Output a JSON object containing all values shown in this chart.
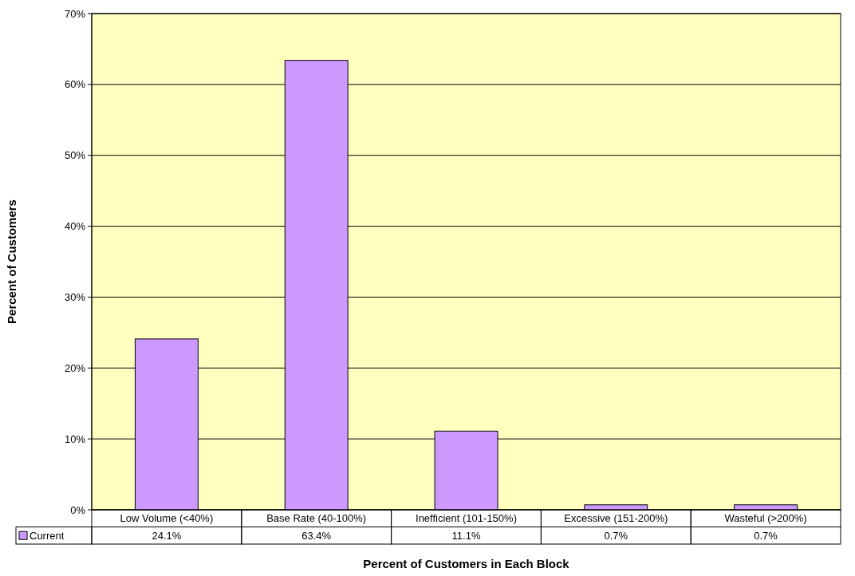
{
  "chart_data": {
    "type": "bar",
    "xlabel": "Percent of Customers in Each Block",
    "ylabel": "Percent of Customers",
    "categories": [
      "Low Volume (<40%)",
      "Base Rate (40-100%)",
      "Inefficient (101-150%)",
      "Excessive (151-200%)",
      "Wasteful (>200%)"
    ],
    "series": [
      {
        "name": "Current",
        "color": "#cc99ff",
        "values": [
          24.1,
          63.4,
          11.1,
          0.7,
          0.7
        ]
      }
    ],
    "value_labels": [
      "24.1%",
      "63.4%",
      "11.1%",
      "0.7%",
      "0.7%"
    ],
    "ylim": [
      0,
      70
    ],
    "yticks": [
      {
        "value": 0,
        "label": "0%"
      },
      {
        "value": 10,
        "label": "10%"
      },
      {
        "value": 20,
        "label": "20%"
      },
      {
        "value": 30,
        "label": "30%"
      },
      {
        "value": 40,
        "label": "40%"
      },
      {
        "value": 50,
        "label": "50%"
      },
      {
        "value": 60,
        "label": "60%"
      },
      {
        "value": 70,
        "label": "70%"
      }
    ],
    "grid": "y",
    "legend": "bottom left"
  }
}
